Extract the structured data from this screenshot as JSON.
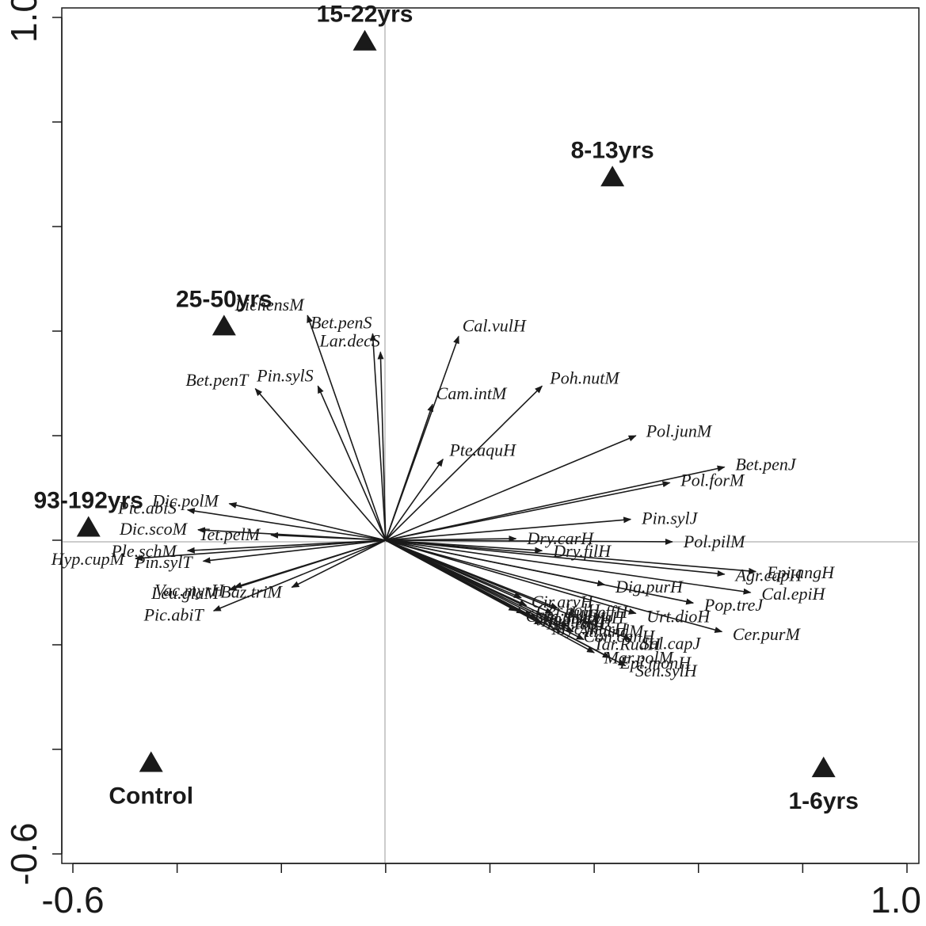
{
  "chart_data": {
    "type": "scatter",
    "title": "",
    "xlabel": "",
    "ylabel": "",
    "xlim": [
      -0.6,
      1.0
    ],
    "ylim": [
      -0.6,
      1.0
    ],
    "x_tick_labels": [
      "-0.6",
      "1.0"
    ],
    "y_tick_labels": [
      "-0.6",
      "1.0"
    ],
    "grid": false,
    "zero_lines": true,
    "arrow_color": "#1a1a1a",
    "marker_color": "#1a1a1a",
    "sites": [
      {
        "name": "15-22yrs",
        "x": -0.04,
        "y": 0.955
      },
      {
        "name": "8-13yrs",
        "x": 0.435,
        "y": 0.695
      },
      {
        "name": "25-50yrs",
        "x": -0.31,
        "y": 0.41
      },
      {
        "name": "93-192yrs",
        "x": -0.57,
        "y": 0.025
      },
      {
        "name": "Control",
        "x": -0.45,
        "y": -0.425
      },
      {
        "name": "1-6yrs",
        "x": 0.84,
        "y": -0.435
      }
    ],
    "species": [
      {
        "name": "LichensM",
        "x": -0.15,
        "y": 0.43
      },
      {
        "name": "Bet.penS",
        "x": -0.025,
        "y": 0.395
      },
      {
        "name": "Lar.decS",
        "x": -0.01,
        "y": 0.36
      },
      {
        "name": "Cal.vulH",
        "x": 0.14,
        "y": 0.39
      },
      {
        "name": "Pin.sylS",
        "x": -0.13,
        "y": 0.295
      },
      {
        "name": "Bet.penT",
        "x": -0.25,
        "y": 0.29
      },
      {
        "name": "Cam.intM",
        "x": 0.09,
        "y": 0.26
      },
      {
        "name": "Poh.nutM",
        "x": 0.3,
        "y": 0.295
      },
      {
        "name": "Pol.junM",
        "x": 0.48,
        "y": 0.2
      },
      {
        "name": "Pte.aquH",
        "x": 0.11,
        "y": 0.155
      },
      {
        "name": "Pol.forM",
        "x": 0.545,
        "y": 0.11
      },
      {
        "name": "Bet.penJ",
        "x": 0.65,
        "y": 0.14
      },
      {
        "name": "Pin.sylJ",
        "x": 0.47,
        "y": 0.04
      },
      {
        "name": "Dry.carH",
        "x": 0.25,
        "y": 0.003
      },
      {
        "name": "Pol.pilM",
        "x": 0.55,
        "y": -0.003
      },
      {
        "name": "Dry.filH",
        "x": 0.3,
        "y": -0.02
      },
      {
        "name": "Agr.capH",
        "x": 0.65,
        "y": -0.065
      },
      {
        "name": "Epi.angH",
        "x": 0.71,
        "y": -0.06
      },
      {
        "name": "Dig.purH",
        "x": 0.42,
        "y": -0.085
      },
      {
        "name": "Cal.epiH",
        "x": 0.7,
        "y": -0.1
      },
      {
        "name": "Pop.treJ",
        "x": 0.59,
        "y": -0.12
      },
      {
        "name": "Urt.dioH",
        "x": 0.48,
        "y": -0.14
      },
      {
        "name": "Cer.purM",
        "x": 0.645,
        "y": -0.175
      },
      {
        "name": "Sal.capJ",
        "x": 0.47,
        "y": -0.19
      },
      {
        "name": "Sen.sylH",
        "x": 0.46,
        "y": -0.24
      },
      {
        "name": "Epi.monH",
        "x": 0.43,
        "y": -0.225
      },
      {
        "name": "Mar.polM",
        "x": 0.4,
        "y": -0.215
      },
      {
        "name": "Tar.RudH",
        "x": 0.38,
        "y": -0.19
      },
      {
        "name": "Con.canH",
        "x": 0.36,
        "y": -0.175
      },
      {
        "name": "Sen.visH",
        "x": 0.32,
        "y": -0.14
      },
      {
        "name": "Gym.dryH",
        "x": 0.25,
        "y": -0.135
      },
      {
        "name": "Fun.hygM",
        "x": 0.265,
        "y": -0.14
      },
      {
        "name": "Hyp.radH",
        "x": 0.28,
        "y": -0.145
      },
      {
        "name": "Epi.tetH",
        "x": 0.29,
        "y": -0.15
      },
      {
        "name": "Myc.murH",
        "x": 0.3,
        "y": -0.16
      },
      {
        "name": "Cer.holH",
        "x": 0.27,
        "y": -0.125
      },
      {
        "name": "Atr.undM",
        "x": 0.35,
        "y": -0.165
      },
      {
        "name": "Jun.effH",
        "x": 0.33,
        "y": -0.13
      },
      {
        "name": "Cir.arvH",
        "x": 0.26,
        "y": -0.11
      },
      {
        "name": "Pic.abiS",
        "x": -0.38,
        "y": 0.058
      },
      {
        "name": "Dic.polM",
        "x": -0.3,
        "y": 0.07
      },
      {
        "name": "Dic.scoM",
        "x": -0.36,
        "y": 0.02
      },
      {
        "name": "Tet.pelM",
        "x": -0.22,
        "y": 0.01
      },
      {
        "name": "Ple.schM",
        "x": -0.38,
        "y": -0.02
      },
      {
        "name": "Hyp.cupM",
        "x": -0.48,
        "y": -0.035
      },
      {
        "name": "Pin.sylT",
        "x": -0.35,
        "y": -0.04
      },
      {
        "name": "Vac.myrH",
        "x": -0.29,
        "y": -0.09
      },
      {
        "name": "Leu.glaM",
        "x": -0.3,
        "y": -0.095
      },
      {
        "name": "Baz.triM",
        "x": -0.18,
        "y": -0.09
      },
      {
        "name": "Pic.abiT",
        "x": -0.33,
        "y": -0.135
      }
    ]
  }
}
